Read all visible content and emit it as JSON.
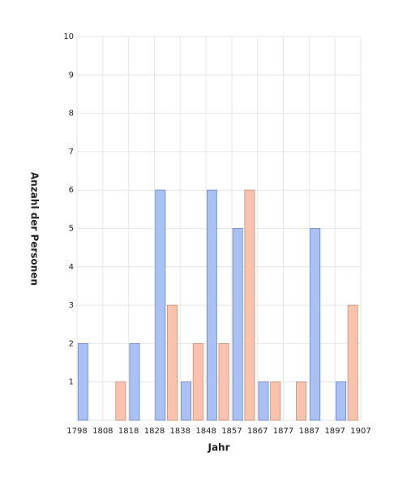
{
  "chart_data": {
    "type": "histogram",
    "x_label": "Jahr",
    "y_label": "Anzahl der Personen",
    "bins": [
      1798,
      1807.91,
      1817.82,
      1827.73,
      1837.64,
      1847.55,
      1857.45,
      1867.36,
      1877.27,
      1887.18,
      1897.09,
      1907
    ],
    "series": [
      {
        "color": "#aac1f6",
        "values": [
          2,
          0,
          2,
          6,
          1,
          6,
          5,
          1,
          0,
          5,
          1
        ]
      },
      {
        "color": "#f8c2ac",
        "values": [
          0,
          1,
          0,
          3,
          2,
          2,
          6,
          1,
          1,
          0,
          3
        ]
      }
    ],
    "xlim": [
      1798,
      1907
    ],
    "xticks": [
      1798,
      {
        "value": 1807.91,
        "label": "1808"
      },
      {
        "value": 1817.82,
        "label": "1818"
      },
      {
        "value": 1827.73,
        "label": "1828"
      },
      {
        "value": 1837.64,
        "label": "1838"
      },
      {
        "value": 1847.55,
        "label": "1848"
      },
      {
        "value": 1857.45,
        "label": "1857"
      },
      {
        "value": 1867.36,
        "label": "1867"
      },
      {
        "value": 1877.27,
        "label": "1877"
      },
      {
        "value": 1887.18,
        "label": "1887"
      },
      {
        "value": 1897.09,
        "label": "1897"
      },
      1907
    ],
    "ylim": [
      0,
      10
    ],
    "yticks": [
      1,
      2,
      3,
      4,
      5,
      6,
      7,
      8,
      9,
      10
    ],
    "grid": true
  }
}
